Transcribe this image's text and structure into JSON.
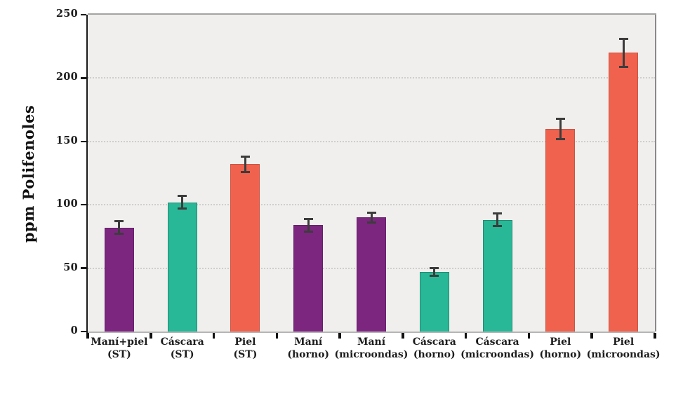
{
  "chart_data": {
    "type": "bar",
    "title": "",
    "xlabel": "",
    "ylabel": "ppm Polifenoles",
    "ylim": [
      0,
      250
    ],
    "yticks": [
      0,
      50,
      100,
      150,
      200,
      250
    ],
    "gridlines_at": [
      50,
      100,
      150,
      200
    ],
    "grid_style": "dotted-horizontal",
    "legend_position": "none",
    "categories": [
      "Maní+piel (ST)",
      "Cáscara (ST)",
      "Piel (ST)",
      "Maní (horno)",
      "Maní (microondas)",
      "Cáscara (horno)",
      "Cáscara (microondas)",
      "Piel (horno)",
      "Piel (microondas)"
    ],
    "bars": [
      {
        "label_line1": "Maní+piel",
        "label_line2": "(ST)",
        "value": 82,
        "error": 5,
        "fill": "#7C2680",
        "edge": "#671F6B"
      },
      {
        "label_line1": "Cáscara",
        "label_line2": "(ST)",
        "value": 102,
        "error": 5,
        "fill": "#29B897",
        "edge": "#1E8A72"
      },
      {
        "label_line1": "Piel",
        "label_line2": "(ST)",
        "value": 132,
        "error": 6,
        "fill": "#F0624E",
        "edge": "#CC5341"
      },
      {
        "label_line1": "Maní",
        "label_line2": "(horno)",
        "value": 84,
        "error": 5,
        "fill": "#7C2680",
        "edge": "#671F6B"
      },
      {
        "label_line1": "Maní",
        "label_line2": "(microondas)",
        "value": 90,
        "error": 4,
        "fill": "#7C2680",
        "edge": "#671F6B"
      },
      {
        "label_line1": "Cáscara",
        "label_line2": "(horno)",
        "value": 47,
        "error": 3,
        "fill": "#29B897",
        "edge": "#1E8A72"
      },
      {
        "label_line1": "Cáscara",
        "label_line2": "(microondas)",
        "value": 88,
        "error": 5,
        "fill": "#29B897",
        "edge": "#1E8A72"
      },
      {
        "label_line1": "Piel",
        "label_line2": "(horno)",
        "value": 160,
        "error": 8,
        "fill": "#F0624E",
        "edge": "#CC5341"
      },
      {
        "label_line1": "Piel",
        "label_line2": "(microondas)",
        "value": 220,
        "error": 11,
        "fill": "#F0624E",
        "edge": "#CC5341"
      }
    ],
    "palette": {
      "mani_purple": "#7C2680",
      "cascara_teal": "#29B897",
      "piel_orange": "#F0624E",
      "error_bar": "#3C3C3C",
      "plot_background": "#F0EFED",
      "gridline": "#CFCECC",
      "axis_dark": "#1A1A1A",
      "axis_gray": "#A3A3A3"
    }
  }
}
